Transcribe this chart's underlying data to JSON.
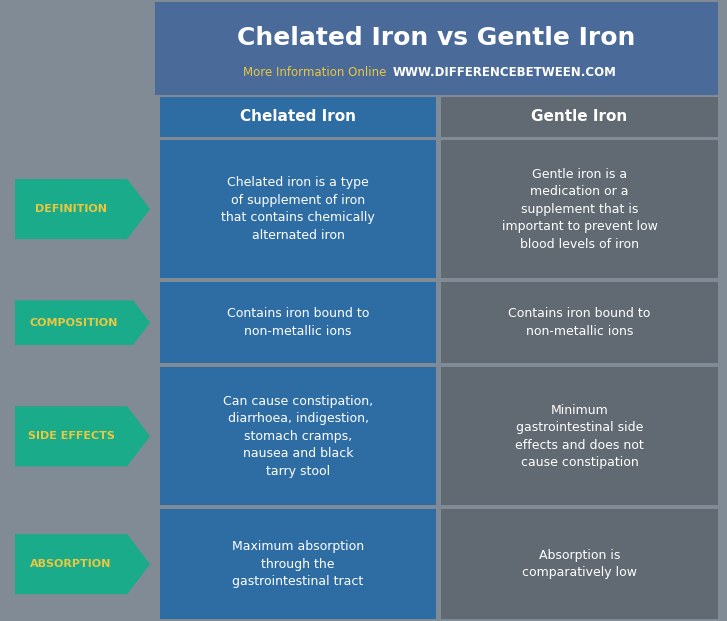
{
  "title": "Chelated Iron vs Gentle Iron",
  "subtitle_normal": "More Information Online",
  "subtitle_bold": "WWW.DIFFERENCEBETWEEN.COM",
  "col1_header": "Chelated Iron",
  "col2_header": "Gentle Iron",
  "bg_color": "#808b96",
  "header_bg_color": "#4a6b9a",
  "cell1_color": "#2e6da4",
  "cell2_color": "#616a72",
  "arrow_color": "#1aab8a",
  "title_color": "#ffffff",
  "subtitle_normal_color": "#e8c840",
  "subtitle_bold_color": "#ffffff",
  "header_text_color": "#ffffff",
  "cell_text_color": "#ffffff",
  "arrow_label_color": "#e8c840",
  "rows": [
    {
      "label": "DEFINITION",
      "col1": "Chelated iron is a type\nof supplement of iron\nthat contains chemically\nalternated iron",
      "col2": "Gentle iron is a\nmedication or a\nsupplement that is\nimportant to prevent low\nblood levels of iron"
    },
    {
      "label": "COMPOSITION",
      "col1": "Contains iron bound to\nnon-metallic ions",
      "col2": "Contains iron bound to\nnon-metallic ions"
    },
    {
      "label": "SIDE EFFECTS",
      "col1": "Can cause constipation,\ndiarrhoea, indigestion,\nstomach cramps,\nnausea and black\ntarry stool",
      "col2": "Minimum\ngastrointestinal side\neffects and does not\ncause constipation"
    },
    {
      "label": "ABSORPTION",
      "col1": "Maximum absorption\nthrough the\ngastrointestinal tract",
      "col2": "Absorption is\ncomparatively low"
    }
  ],
  "figwidth": 7.27,
  "figheight": 6.21,
  "dpi": 100
}
